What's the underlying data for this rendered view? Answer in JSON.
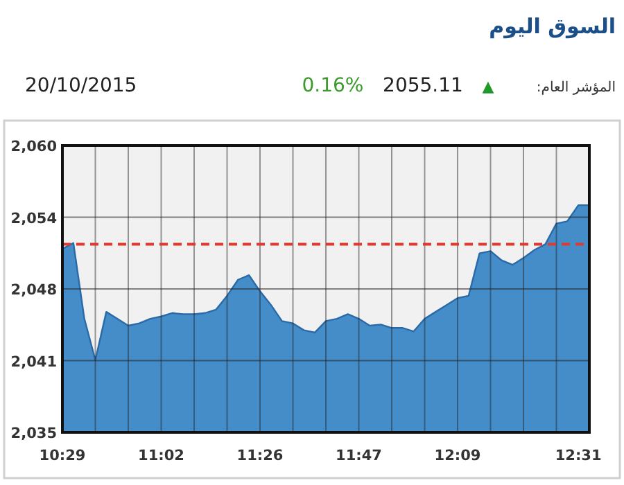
{
  "chart_data": {
    "type": "area",
    "title": "السوق اليوم",
    "annotations": [
      "المؤشر العام:",
      "▲",
      "2055.11",
      "0.16%",
      "20/10/2015"
    ],
    "categories": [
      "10:29",
      null,
      null,
      null,
      null,
      null,
      null,
      null,
      null,
      "11:02",
      null,
      null,
      null,
      null,
      null,
      null,
      null,
      null,
      "11:26",
      null,
      null,
      null,
      null,
      null,
      null,
      null,
      null,
      "11:47",
      null,
      null,
      null,
      null,
      null,
      null,
      null,
      null,
      "12:09",
      null,
      null,
      null,
      null,
      null,
      null,
      null,
      null,
      null,
      null,
      "12:31",
      null
    ],
    "series": [
      {
        "color": "#3b87c5",
        "values": [
          2051.0,
          2051.5,
          2044.9,
          2041.3,
          2045.5,
          2044.9,
          2044.3,
          2044.5,
          2044.9,
          2045.1,
          2045.4,
          2045.3,
          2045.3,
          2045.4,
          2045.7,
          2046.9,
          2048.3,
          2048.7,
          2047.3,
          2046.1,
          2044.7,
          2044.5,
          2043.9,
          2043.7,
          2044.7,
          2044.9,
          2045.3,
          2044.9,
          2044.3,
          2044.4,
          2044.1,
          2044.1,
          2043.8,
          2044.9,
          2045.5,
          2046.1,
          2046.7,
          2046.9,
          2050.6,
          2050.8,
          2050.0,
          2049.6,
          2050.2,
          2050.9,
          2051.4,
          2053.2,
          2053.4,
          2054.8,
          2054.8
        ]
      }
    ],
    "ylim": [
      2035,
      2060
    ],
    "yticks": [
      {
        "value": 2035,
        "label": "2,035"
      },
      {
        "value": 2041.25,
        "label": "2,041"
      },
      {
        "value": 2047.5,
        "label": "2,048"
      },
      {
        "value": 2053.75,
        "label": "2,054"
      },
      {
        "value": 2060,
        "label": "2,060"
      }
    ],
    "grid": true,
    "ref_lines": [
      {
        "axis": "y",
        "value": 2051.4,
        "color": "#e03a2f",
        "line_style": "dashed"
      }
    ]
  }
}
